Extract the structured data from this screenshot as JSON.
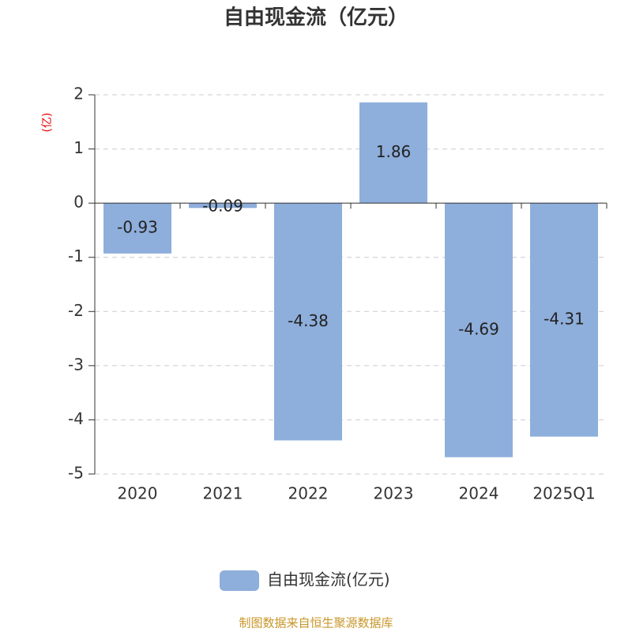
{
  "chart_data": {
    "type": "bar",
    "title": "自由现金流（亿元）",
    "y_label": "(亿)",
    "categories": [
      "2020",
      "2021",
      "2022",
      "2023",
      "2024",
      "2025Q1"
    ],
    "series": [
      {
        "name": "自由现金流(亿元)",
        "color": "#8eaedb",
        "values": [
          -0.93,
          -0.09,
          -4.38,
          1.86,
          -4.69,
          -4.31
        ]
      }
    ],
    "ylim": [
      -5,
      2
    ],
    "yticks": [
      -5,
      -4,
      -3,
      -2,
      -1,
      0,
      1,
      2
    ],
    "grid": true,
    "legend": "bottom",
    "source": "制图数据来自恒生聚源数据库"
  }
}
